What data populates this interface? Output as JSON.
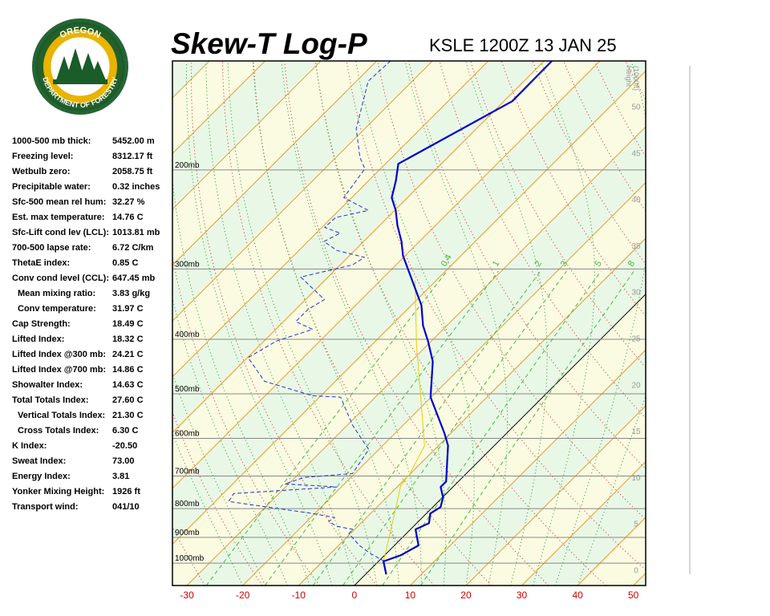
{
  "logo": {
    "top": "OREGON",
    "bottom": "DEPARTMENT OF FORESTRY"
  },
  "header": {
    "title": "Skew-T Log-P",
    "station": "KSLE 1200Z 13 JAN 25"
  },
  "indices": [
    {
      "label": "1000-500 mb thick:",
      "value": "5452.00 m"
    },
    {
      "label": "Freezing level:",
      "value": "8312.17 ft"
    },
    {
      "label": "Wetbulb zero:",
      "value": "2058.75 ft"
    },
    {
      "label": "Precipitable water:",
      "value": "0.32 inches"
    },
    {
      "label": "Sfc-500 mean rel hum:",
      "value": "32.27 %"
    },
    {
      "label": "Est. max temperature:",
      "value": "14.76 C"
    },
    {
      "label": "Sfc-Lift cond lev (LCL):",
      "value": "1013.81 mb"
    },
    {
      "label": "700-500 lapse rate:",
      "value": "6.72 C/km"
    },
    {
      "label": "ThetaE index:",
      "value": "0.85 C"
    },
    {
      "label": "Conv cond level (CCL):",
      "value": "647.45 mb",
      "children": [
        {
          "label": "Mean mixing ratio:",
          "value": "3.83 g/kg"
        },
        {
          "label": "Conv temperature:",
          "value": "31.97 C"
        }
      ]
    },
    {
      "label": "Cap Strength:",
      "value": "18.49 C"
    },
    {
      "label": "Lifted Index:",
      "value": "18.32 C"
    },
    {
      "label": "Lifted Index @300 mb:",
      "value": "24.21 C"
    },
    {
      "label": "Lifted Index @700 mb:",
      "value": "14.86 C"
    },
    {
      "label": "Showalter Index:",
      "value": "14.63 C"
    },
    {
      "label": "Total Totals Index:",
      "value": "27.60 C",
      "children": [
        {
          "label": "Vertical Totals Index:",
          "value": "21.30 C"
        },
        {
          "label": "Cross Totals Index:",
          "value": "6.30 C"
        }
      ]
    },
    {
      "label": "K Index:",
      "value": "-20.50"
    },
    {
      "label": "Sweat Index:",
      "value": "73.00"
    },
    {
      "label": "Energy Index:",
      "value": "3.81"
    },
    {
      "label": "Yonker Mixing Height:",
      "value": "1926 ft"
    },
    {
      "label": "Transport wind:",
      "value": "041/10"
    }
  ],
  "chart_data": {
    "type": "skewt",
    "xlim": [
      -32.6,
      52.2
    ],
    "xticks": [
      -30,
      -20,
      -10,
      0,
      10,
      20,
      30,
      40,
      50
    ],
    "ylim": [
      1096,
      128
    ],
    "log_y": true,
    "yticks": [
      {
        "value": 200,
        "label": "200mb"
      },
      {
        "value": 300,
        "label": "300mb"
      },
      {
        "value": 400,
        "label": "400mb"
      },
      {
        "value": 500,
        "label": "500mb"
      },
      {
        "value": 600,
        "label": "600mb"
      },
      {
        "value": 700,
        "label": "700mb"
      },
      {
        "value": 800,
        "label": "800mb"
      },
      {
        "value": 900,
        "label": "900mb"
      },
      {
        "value": 1000,
        "label": "1000mb"
      }
    ],
    "y2_label": [
      "Height",
      "(1000ft)"
    ],
    "y2lim": [
      -1.7,
      54.9
    ],
    "y2ticks": [
      0,
      5,
      10,
      15,
      20,
      25,
      30,
      35,
      40,
      45,
      50
    ],
    "mixing_ratios": [
      0.4,
      1,
      2,
      3,
      5,
      8
    ],
    "temperature": {
      "color": "#0000cc",
      "pressure": [
        1047,
        993,
        968,
        930,
        871,
        849,
        816,
        795,
        764,
        732,
        716,
        618,
        588,
        507,
        438,
        403,
        378,
        348,
        284,
        268,
        251,
        236,
        224,
        209,
        195,
        151,
        128
      ],
      "values": [
        3.7,
        0.9,
        2.9,
        4.3,
        0.9,
        2.2,
        0.7,
        1.4,
        0.1,
        -2.2,
        -2.2,
        -8.3,
        -11.1,
        -20.1,
        -26.1,
        -30.6,
        -34.3,
        -38.2,
        -50.4,
        -53.2,
        -56.8,
        -59.8,
        -62.8,
        -65.1,
        -67.7,
        -58.5,
        -58.6
      ]
    },
    "dewpoint": {
      "color": "#2233cc",
      "pressure": [
        993,
        961,
        930,
        886,
        871,
        860,
        843,
        830,
        816,
        777,
        752,
        732,
        723,
        704,
        693,
        628,
        569,
        507,
        504,
        475,
        431,
        403,
        384,
        372,
        354,
        340,
        310,
        295,
        286,
        278,
        268,
        259,
        253,
        243,
        236,
        224,
        199,
        190,
        169,
        139,
        128
      ],
      "values": [
        1.1,
        -2.9,
        -6.3,
        -10.3,
        -10.3,
        -13.8,
        -16.1,
        -15.7,
        -20.4,
        -37.6,
        -38.1,
        -20.8,
        -30.7,
        -28.3,
        -20.4,
        -21.8,
        -29.0,
        -36.2,
        -41.5,
        -52.7,
        -59.9,
        -57.8,
        -53.4,
        -57.8,
        -57.8,
        -56.6,
        -64.9,
        -57.8,
        -57.0,
        -63.2,
        -67.1,
        -65.7,
        -69.5,
        -69.3,
        -64.7,
        -71.4,
        -72.8,
        -75.7,
        -81.5,
        -87.9,
        -87.5
      ]
    },
    "parcel": {
      "color": "#e6d000",
      "pressure": [
        993,
        843,
        728,
        693,
        618,
        499,
        410,
        315
      ],
      "values": [
        0.9,
        -4.6,
        -9.6,
        -10.1,
        -12.5,
        -22.6,
        -31.9,
        -43.7
      ]
    }
  }
}
